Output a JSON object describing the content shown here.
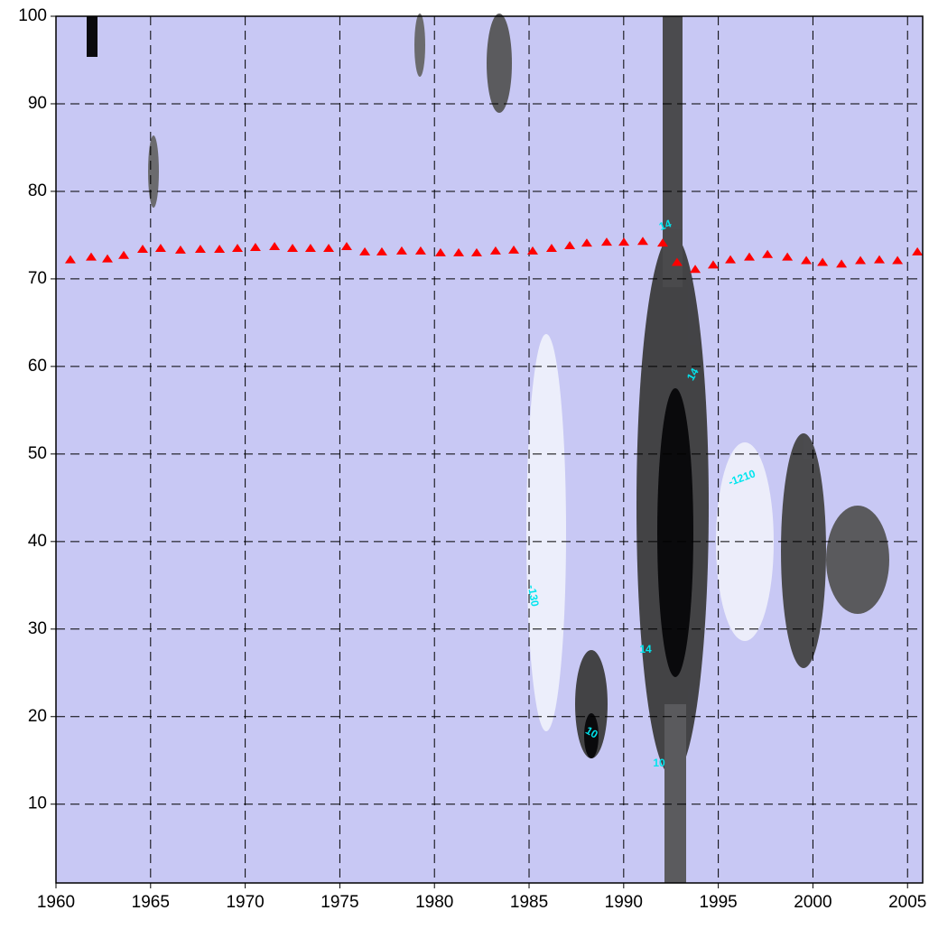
{
  "chart_data": {
    "type": "contour",
    "xlim": [
      1960,
      2005.8
    ],
    "ylim": [
      1,
      100
    ],
    "xticks": [
      1960,
      1965,
      1970,
      1975,
      1980,
      1985,
      1990,
      1995,
      2000,
      2005
    ],
    "yticks": [
      10,
      20,
      30,
      40,
      50,
      60,
      70,
      80,
      90,
      100
    ],
    "grid": true,
    "annotations": [
      "-1210",
      "-130",
      "14",
      "14",
      "14",
      "10",
      "10"
    ],
    "series": [
      {
        "color": "#ff0000",
        "x": [
          1960.76,
          1961.86,
          1962.72,
          1963.58,
          1964.58,
          1965.53,
          1966.58,
          1967.63,
          1968.64,
          1969.59,
          1970.54,
          1971.55,
          1972.5,
          1973.45,
          1974.41,
          1975.36,
          1976.32,
          1977.22,
          1978.27,
          1979.27,
          1980.32,
          1981.28,
          1982.23,
          1983.23,
          1984.19,
          1985.19,
          1986.19,
          1987.15,
          1988.05,
          1989.1,
          1990.01,
          1991.01,
          1992.06,
          1992.82,
          1993.78,
          1994.73,
          1995.64,
          1996.64,
          1997.6,
          1998.65,
          1999.65,
          2000.51,
          2001.51,
          2002.51,
          2003.51,
          2004.47,
          2005.52
        ],
        "values": [
          72.2,
          72.5,
          72.3,
          72.7,
          73.4,
          73.5,
          73.3,
          73.4,
          73.4,
          73.5,
          73.6,
          73.7,
          73.5,
          73.5,
          73.5,
          73.7,
          73.1,
          73.1,
          73.2,
          73.2,
          73.0,
          73.0,
          73.0,
          73.2,
          73.3,
          73.2,
          73.5,
          73.8,
          74.1,
          74.2,
          74.2,
          74.3,
          74.1,
          71.9,
          71.1,
          71.6,
          72.2,
          72.5,
          72.8,
          72.5,
          72.1,
          71.9,
          71.7,
          72.1,
          72.2,
          72.1,
          73.1
        ]
      }
    ]
  }
}
